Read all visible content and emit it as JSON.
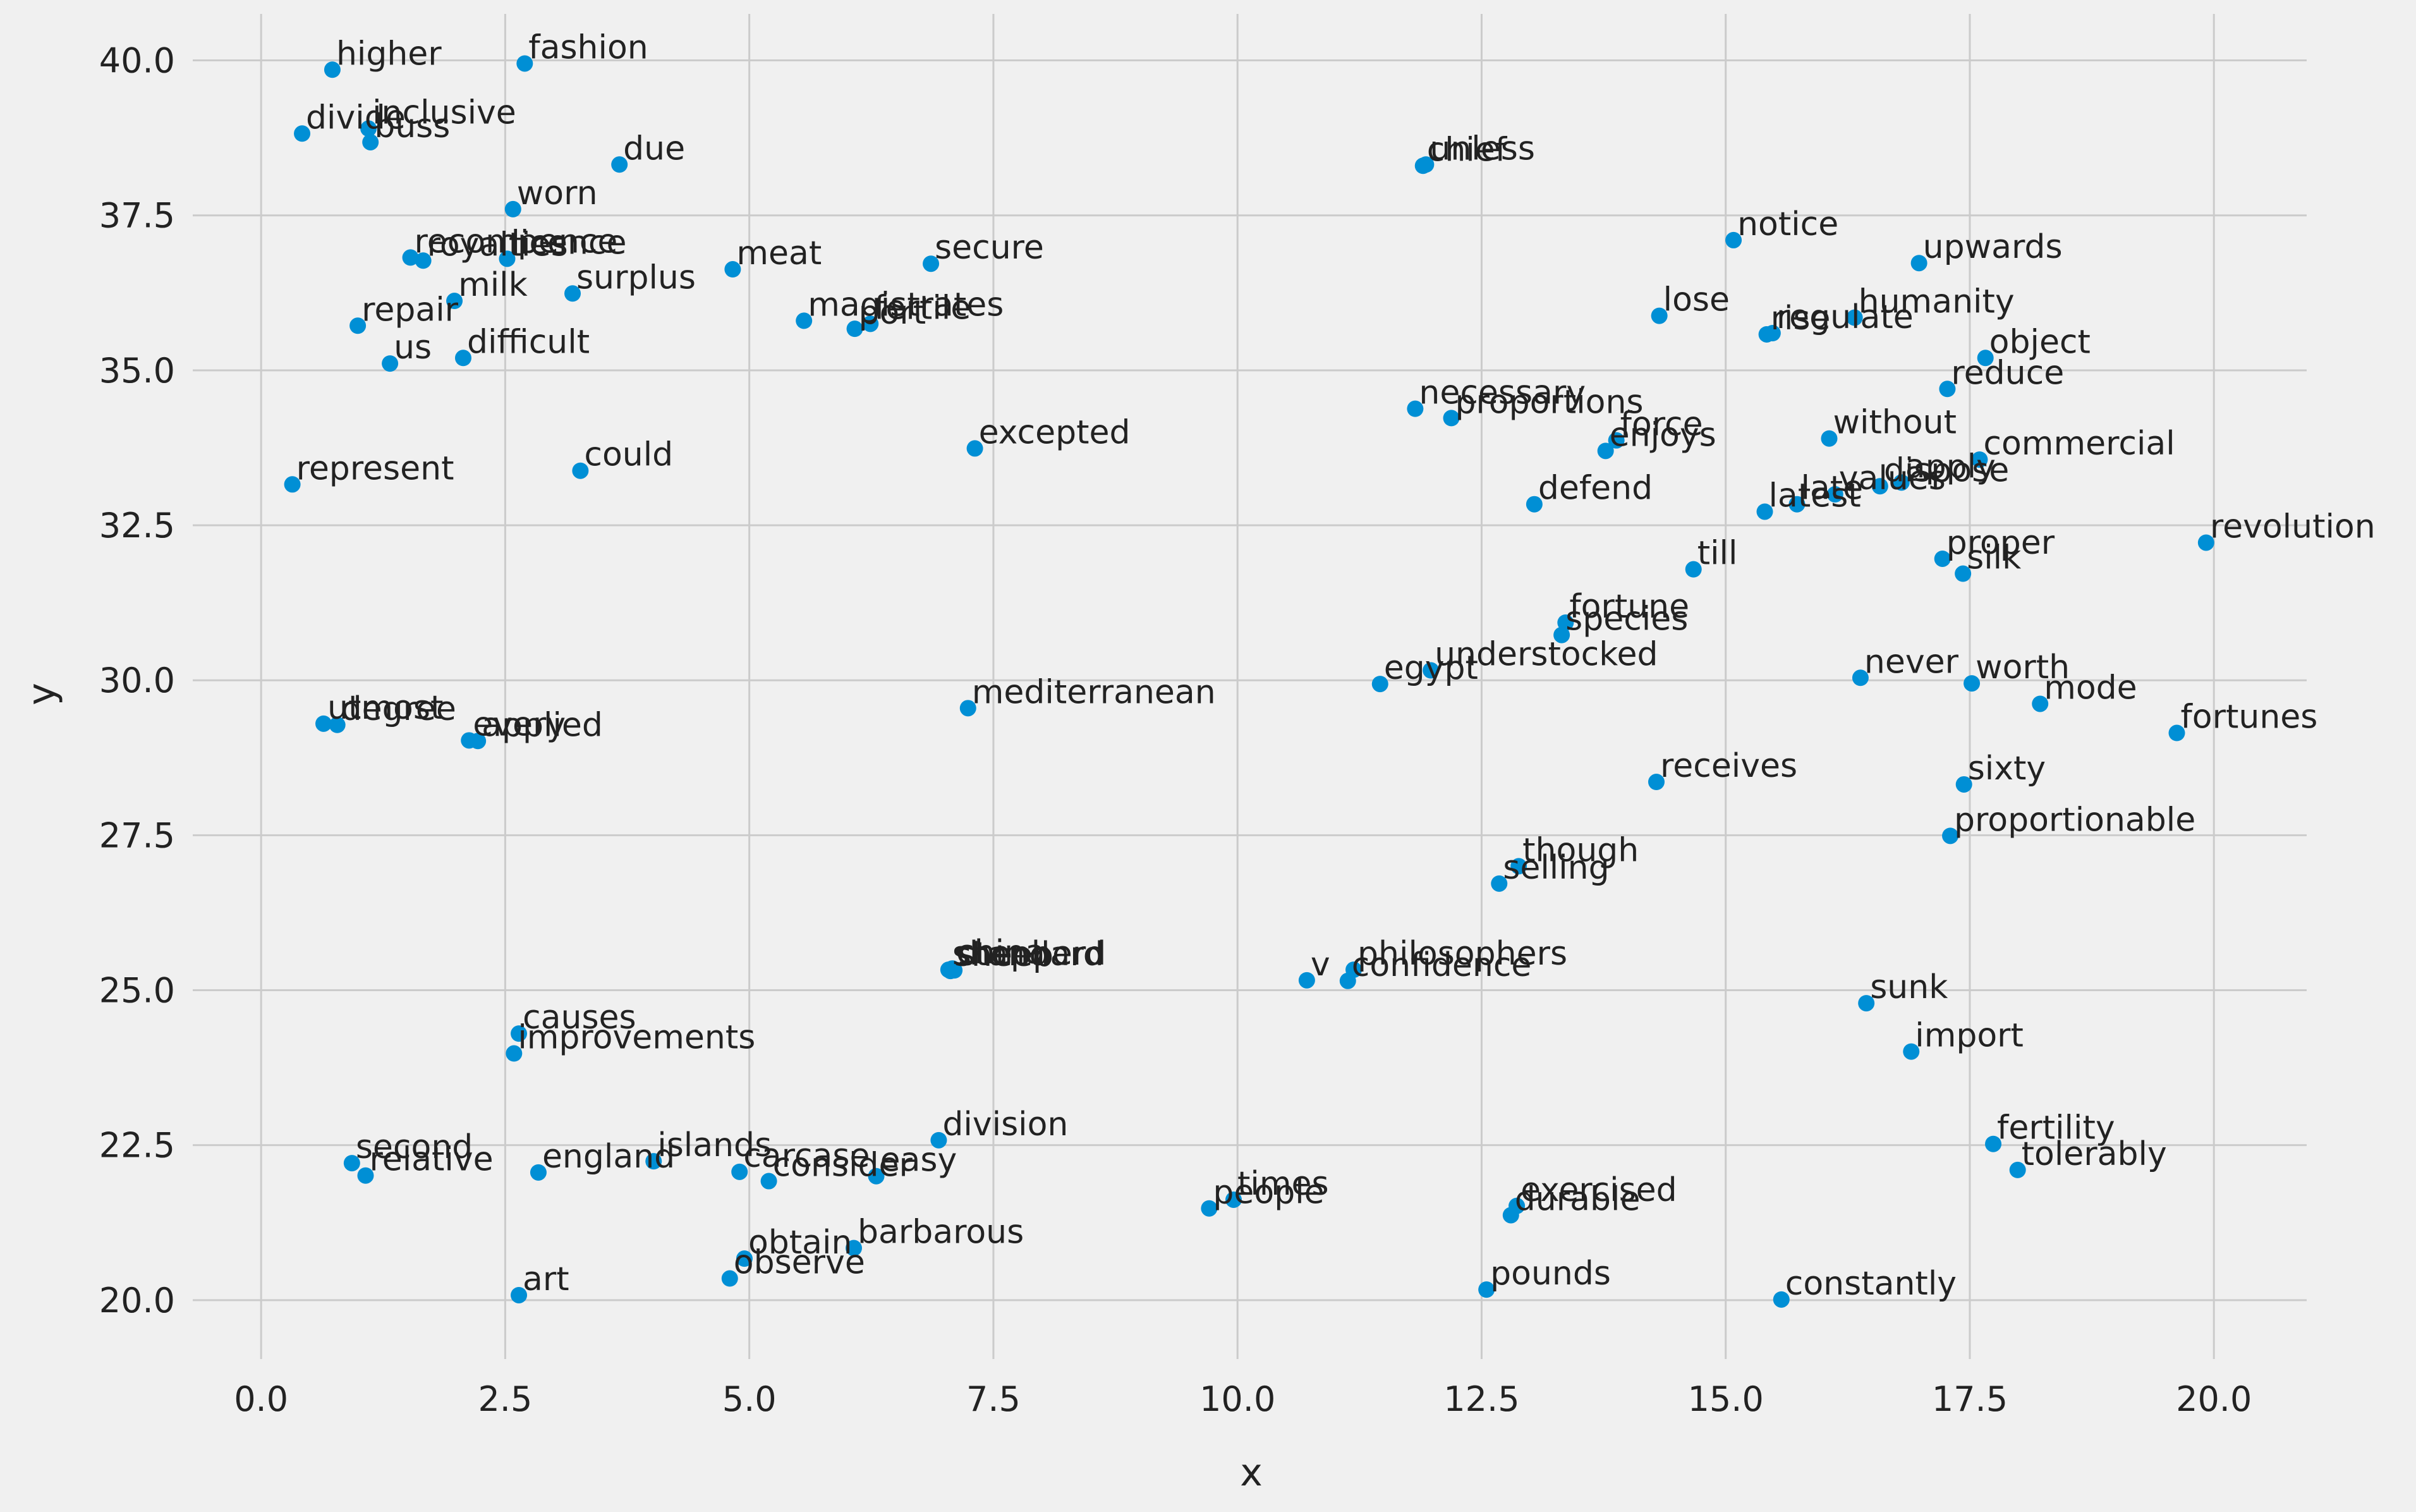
{
  "chart_data": {
    "type": "scatter",
    "title": "",
    "xlabel": "x",
    "ylabel": "y",
    "xlim": [
      -0.7,
      20.95
    ],
    "ylim": [
      19.05,
      40.75
    ],
    "xticks": [
      0.0,
      2.5,
      5.0,
      7.5,
      10.0,
      12.5,
      15.0,
      17.5,
      20.0
    ],
    "yticks": [
      20.0,
      22.5,
      25.0,
      27.5,
      30.0,
      32.5,
      35.0,
      37.5,
      40.0
    ],
    "grid": true,
    "colors": {
      "point": "#008fd5",
      "background": "#f0f0f0",
      "grid": "#cbcbcb",
      "text": "#222222"
    },
    "points": [
      {
        "label": "higher",
        "x": 0.73,
        "y": 39.85
      },
      {
        "label": "fashion",
        "x": 2.7,
        "y": 39.95
      },
      {
        "label": "divide",
        "x": 0.42,
        "y": 38.82
      },
      {
        "label": "inclusive",
        "x": 1.1,
        "y": 38.9
      },
      {
        "label": "buss",
        "x": 1.12,
        "y": 38.68
      },
      {
        "label": "due",
        "x": 3.67,
        "y": 38.32
      },
      {
        "label": "worn",
        "x": 2.58,
        "y": 37.6
      },
      {
        "label": "recompence",
        "x": 1.53,
        "y": 36.82
      },
      {
        "label": "royalties",
        "x": 1.66,
        "y": 36.77
      },
      {
        "label": "licence",
        "x": 2.52,
        "y": 36.8
      },
      {
        "label": "milk",
        "x": 1.98,
        "y": 36.12
      },
      {
        "label": "surplus",
        "x": 3.19,
        "y": 36.24
      },
      {
        "label": "meat",
        "x": 4.83,
        "y": 36.63
      },
      {
        "label": "secure",
        "x": 6.86,
        "y": 36.72
      },
      {
        "label": "repair",
        "x": 0.99,
        "y": 35.72
      },
      {
        "label": "magistrates",
        "x": 5.56,
        "y": 35.8
      },
      {
        "label": "fertile",
        "x": 6.24,
        "y": 35.75
      },
      {
        "label": "port",
        "x": 6.08,
        "y": 35.67
      },
      {
        "label": "us",
        "x": 1.32,
        "y": 35.11
      },
      {
        "label": "difficult",
        "x": 2.07,
        "y": 35.2
      },
      {
        "label": "represent",
        "x": 0.32,
        "y": 33.16
      },
      {
        "label": "could",
        "x": 3.27,
        "y": 33.38
      },
      {
        "label": "excepted",
        "x": 7.31,
        "y": 33.74
      },
      {
        "label": "utmost",
        "x": 0.64,
        "y": 29.3
      },
      {
        "label": "degree",
        "x": 0.78,
        "y": 29.28
      },
      {
        "label": "every",
        "x": 2.13,
        "y": 29.03
      },
      {
        "label": "applied",
        "x": 2.22,
        "y": 29.02
      },
      {
        "label": "mediterranean",
        "x": 7.24,
        "y": 29.55
      },
      {
        "label": "shepherd",
        "x": 7.04,
        "y": 25.33
      },
      {
        "label": "sheep",
        "x": 7.06,
        "y": 25.31
      },
      {
        "label": "china",
        "x": 7.08,
        "y": 25.35
      },
      {
        "label": "standard",
        "x": 7.1,
        "y": 25.32
      },
      {
        "label": "causes",
        "x": 2.64,
        "y": 24.3
      },
      {
        "label": "improvements",
        "x": 2.59,
        "y": 23.98
      },
      {
        "label": "second",
        "x": 0.93,
        "y": 22.21
      },
      {
        "label": "relative",
        "x": 1.07,
        "y": 22.01
      },
      {
        "label": "england",
        "x": 2.84,
        "y": 22.06
      },
      {
        "label": "islands",
        "x": 4.02,
        "y": 22.24
      },
      {
        "label": "carcase",
        "x": 4.9,
        "y": 22.07
      },
      {
        "label": "consider",
        "x": 5.2,
        "y": 21.92
      },
      {
        "label": "easy",
        "x": 6.3,
        "y": 22.0
      },
      {
        "label": "division",
        "x": 6.94,
        "y": 22.58
      },
      {
        "label": "obtain",
        "x": 4.95,
        "y": 20.67
      },
      {
        "label": "barbarous",
        "x": 6.07,
        "y": 20.84
      },
      {
        "label": "observe",
        "x": 4.8,
        "y": 20.35
      },
      {
        "label": "art",
        "x": 2.64,
        "y": 20.08
      },
      {
        "label": "times",
        "x": 9.96,
        "y": 21.62
      },
      {
        "label": "people",
        "x": 9.71,
        "y": 21.48
      },
      {
        "label": "chief",
        "x": 11.9,
        "y": 38.3
      },
      {
        "label": "unless",
        "x": 11.93,
        "y": 38.32
      },
      {
        "label": "notice",
        "x": 15.08,
        "y": 37.1
      },
      {
        "label": "upwards",
        "x": 16.98,
        "y": 36.73
      },
      {
        "label": "lose",
        "x": 14.32,
        "y": 35.88
      },
      {
        "label": "rise",
        "x": 15.42,
        "y": 35.58
      },
      {
        "label": "regulate",
        "x": 15.48,
        "y": 35.6
      },
      {
        "label": "humanity",
        "x": 16.32,
        "y": 35.85
      },
      {
        "label": "object",
        "x": 17.66,
        "y": 35.2
      },
      {
        "label": "reduce",
        "x": 17.27,
        "y": 34.7
      },
      {
        "label": "necessary",
        "x": 11.82,
        "y": 34.38
      },
      {
        "label": "proportions",
        "x": 12.19,
        "y": 34.23
      },
      {
        "label": "force",
        "x": 13.88,
        "y": 33.87
      },
      {
        "label": "enjoys",
        "x": 13.77,
        "y": 33.7
      },
      {
        "label": "without",
        "x": 16.06,
        "y": 33.9
      },
      {
        "label": "commercial",
        "x": 17.6,
        "y": 33.56
      },
      {
        "label": "apply",
        "x": 16.8,
        "y": 33.19
      },
      {
        "label": "dispose",
        "x": 16.58,
        "y": 33.13
      },
      {
        "label": "values",
        "x": 16.12,
        "y": 33.0
      },
      {
        "label": "late",
        "x": 15.73,
        "y": 32.84
      },
      {
        "label": "defend",
        "x": 13.04,
        "y": 32.84
      },
      {
        "label": "latest",
        "x": 15.4,
        "y": 32.72
      },
      {
        "label": "revolution",
        "x": 19.92,
        "y": 32.22
      },
      {
        "label": "proper",
        "x": 17.22,
        "y": 31.96
      },
      {
        "label": "silk",
        "x": 17.43,
        "y": 31.72
      },
      {
        "label": "till",
        "x": 14.67,
        "y": 31.79
      },
      {
        "label": "fortune",
        "x": 13.36,
        "y": 30.93
      },
      {
        "label": "species",
        "x": 13.32,
        "y": 30.73
      },
      {
        "label": "understocked",
        "x": 11.98,
        "y": 30.16
      },
      {
        "label": "egypt",
        "x": 11.46,
        "y": 29.94
      },
      {
        "label": "never",
        "x": 16.38,
        "y": 30.04
      },
      {
        "label": "worth",
        "x": 17.52,
        "y": 29.95
      },
      {
        "label": "mode",
        "x": 18.22,
        "y": 29.62
      },
      {
        "label": "fortunes",
        "x": 19.62,
        "y": 29.15
      },
      {
        "label": "receives",
        "x": 14.29,
        "y": 28.36
      },
      {
        "label": "sixty",
        "x": 17.44,
        "y": 28.32
      },
      {
        "label": "proportionable",
        "x": 17.3,
        "y": 27.49
      },
      {
        "label": "though",
        "x": 12.88,
        "y": 27.0
      },
      {
        "label": "selling",
        "x": 12.68,
        "y": 26.72
      },
      {
        "label": "philosophers",
        "x": 11.19,
        "y": 25.33
      },
      {
        "label": "v",
        "x": 10.71,
        "y": 25.16
      },
      {
        "label": "confidence",
        "x": 11.13,
        "y": 25.15
      },
      {
        "label": "sunk",
        "x": 16.44,
        "y": 24.79
      },
      {
        "label": "import",
        "x": 16.9,
        "y": 24.01
      },
      {
        "label": "fertility",
        "x": 17.74,
        "y": 22.52
      },
      {
        "label": "tolerably",
        "x": 17.99,
        "y": 22.1
      },
      {
        "label": "exercised",
        "x": 12.86,
        "y": 21.52
      },
      {
        "label": "durable",
        "x": 12.8,
        "y": 21.37
      },
      {
        "label": "pounds",
        "x": 12.55,
        "y": 20.17
      },
      {
        "label": "constantly",
        "x": 15.57,
        "y": 20.01
      }
    ]
  }
}
